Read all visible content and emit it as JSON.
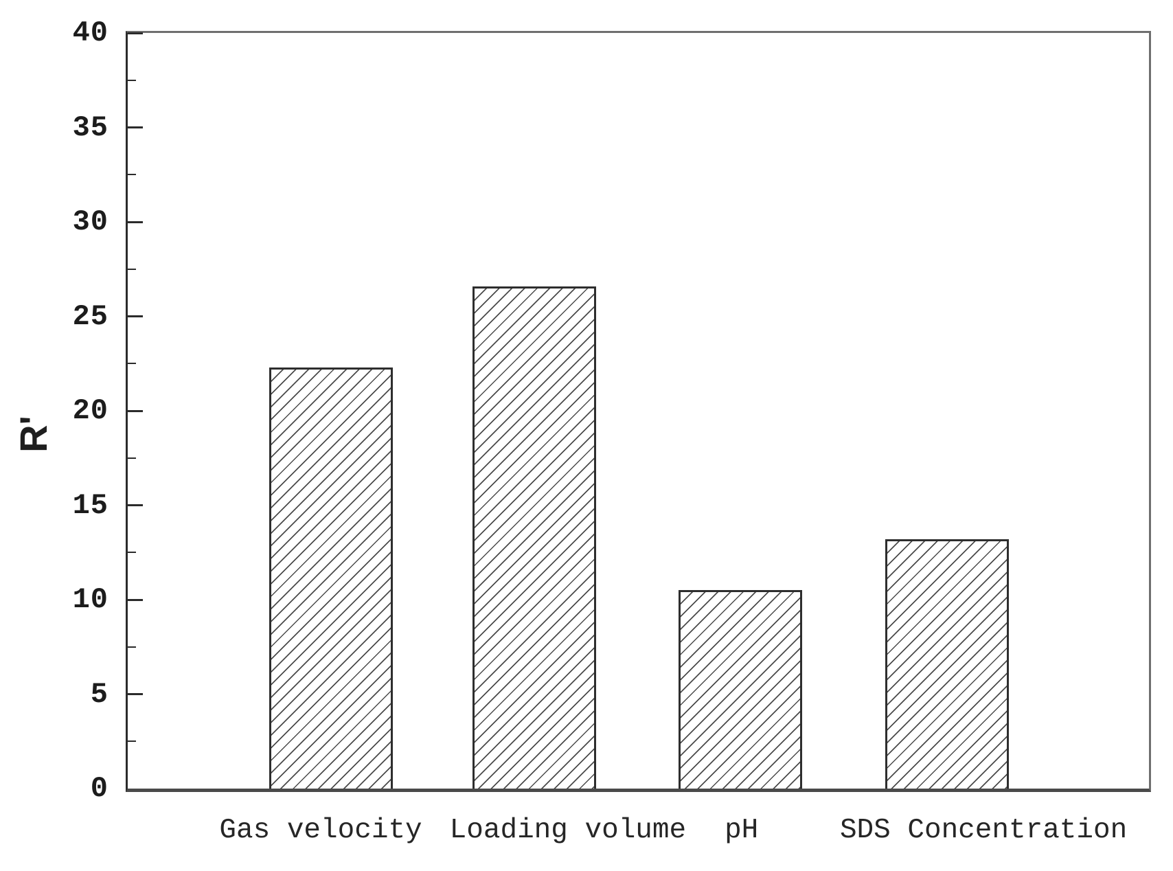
{
  "figure": {
    "background": "#ffffff"
  },
  "chart_data": {
    "type": "bar",
    "title": "",
    "categories": [
      "Gas velocity",
      "Loading volume",
      "pH",
      "SDS Concentration"
    ],
    "values": [
      22.3,
      26.6,
      10.5,
      13.2
    ],
    "series_name": "R'",
    "xlabel": "",
    "ylabel": "R'",
    "ylim": [
      0,
      40
    ],
    "yticks": [
      0,
      5,
      10,
      15,
      20,
      25,
      30,
      35,
      40
    ],
    "minor_ytick_step": 2.5,
    "grid": false,
    "legend_position": "none",
    "bar_style": "white fill with forward-diagonal hatch",
    "colors": {
      "bar_edge": "#2e2e2e",
      "hatch_line": "#323232",
      "axis_line": "#2b2b2b",
      "frame_line": "#6f6f6f",
      "tick_label": "#1c1c1c",
      "category_label": "#262626",
      "background": "#ffffff"
    }
  }
}
